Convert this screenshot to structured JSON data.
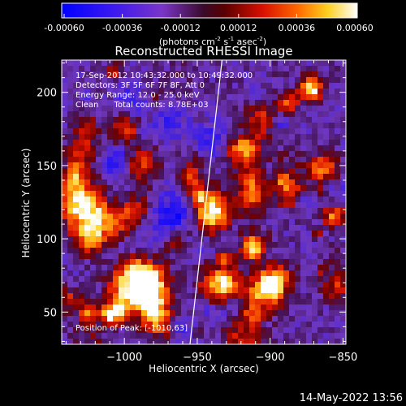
{
  "colorbar": {
    "ticks": [
      "-0.00060",
      "-0.00036",
      "-0.00012",
      "0.00012",
      "0.00036",
      "0.00060"
    ],
    "units_main": "(photons cm",
    "units_exp1": "-2",
    "units_mid": " s",
    "units_exp2": "-1",
    "units_end": " asec",
    "units_exp3": "-2",
    "units_close": ")",
    "range": [
      -0.0006,
      0.0006
    ]
  },
  "chart_data": {
    "type": "heatmap",
    "title": "Reconstructed RHESSI Image",
    "xlabel": "Heliocentric X (arcsec)",
    "ylabel": "Heliocentric Y (arcsec)",
    "xlim": [
      -1043,
      -848
    ],
    "ylim": [
      28,
      222
    ],
    "xticks": [
      -1000,
      -950,
      -900,
      -850
    ],
    "xtick_labels": [
      "−1000",
      "−950",
      "−900",
      "−850"
    ],
    "yticks": [
      50,
      100,
      150,
      200
    ],
    "ytick_labels": [
      "50",
      "100",
      "150",
      "200"
    ],
    "annotations": [
      "17-Sep-2012 10:43:32.000 to 10:49:32.000",
      "Detectors: 3F 5F 6F 7F 8F, Att 0",
      "Energy Range: 12.0 - 25.0 keV",
      "Clean      Total counts: 8.78E+03"
    ],
    "peak_label": "Position of Peak: [-1010,63]",
    "limb_line": [
      [
        -933,
        222
      ],
      [
        -955,
        28
      ]
    ]
  },
  "footer": {
    "date": "14-May-2022 13:56"
  }
}
